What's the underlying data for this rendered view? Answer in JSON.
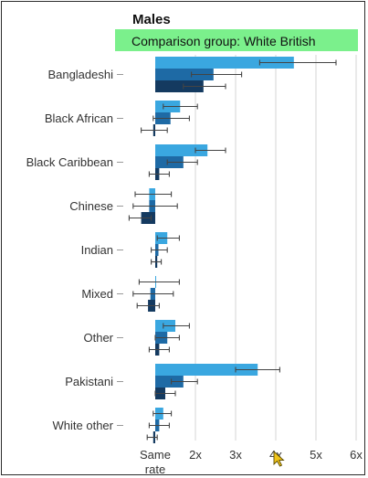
{
  "chart_data": {
    "type": "bar",
    "orientation": "horizontal",
    "title": "Males",
    "subtitle": "Comparison group: White British",
    "categories": [
      "Bangladeshi",
      "Black African",
      "Black Caribbean",
      "Chinese",
      "Indian",
      "Mixed",
      "Other",
      "Pakistani",
      "White other"
    ],
    "series": [
      {
        "color": "#3aa7e0",
        "values": [
          4.45,
          1.62,
          2.3,
          0.85,
          1.3,
          1.0,
          1.5,
          3.55,
          1.2
        ],
        "ci_low": [
          3.6,
          1.2,
          2.0,
          0.5,
          1.05,
          0.6,
          1.2,
          3.0,
          0.95
        ],
        "ci_high": [
          5.5,
          2.05,
          2.75,
          1.4,
          1.6,
          1.6,
          1.85,
          4.1,
          1.4
        ]
      },
      {
        "color": "#1e6aa5",
        "values": [
          2.45,
          1.38,
          1.7,
          0.85,
          1.08,
          0.88,
          1.3,
          1.7,
          1.1
        ],
        "ci_low": [
          1.9,
          0.95,
          1.3,
          0.45,
          0.9,
          0.45,
          1.0,
          1.4,
          0.85
        ],
        "ci_high": [
          3.15,
          1.85,
          2.05,
          1.55,
          1.3,
          1.45,
          1.6,
          2.05,
          1.35
        ]
      },
      {
        "color": "#143a60",
        "values": [
          2.2,
          0.95,
          1.1,
          0.65,
          1.05,
          0.82,
          1.1,
          1.25,
          0.95
        ],
        "ci_low": [
          1.7,
          0.65,
          0.85,
          0.35,
          0.9,
          0.55,
          0.85,
          1.0,
          0.8
        ],
        "ci_high": [
          2.75,
          1.3,
          1.35,
          0.9,
          1.15,
          1.1,
          1.35,
          1.5,
          1.05
        ]
      }
    ],
    "x_ticks": [
      {
        "value": 1,
        "label": "Same rate"
      },
      {
        "value": 2,
        "label": "2x"
      },
      {
        "value": 3,
        "label": "3x"
      },
      {
        "value": 4,
        "label": "4x"
      },
      {
        "value": 5,
        "label": "5x"
      },
      {
        "value": 6,
        "label": "6x"
      }
    ],
    "xlim": [
      1,
      6.2
    ],
    "grid": true,
    "subtitle_bg": "#7bf08c"
  },
  "ui": {
    "cursor": "pointer-cursor-icon"
  }
}
